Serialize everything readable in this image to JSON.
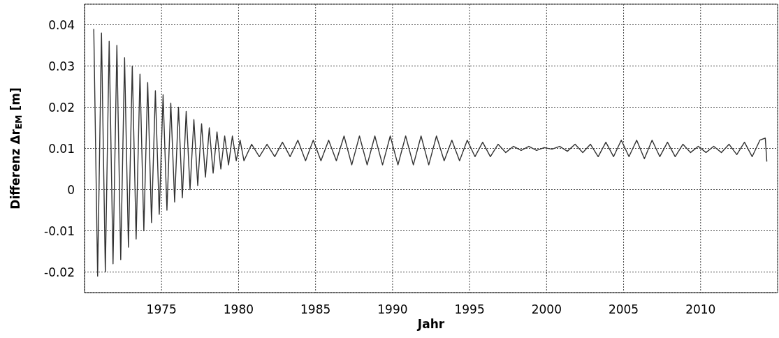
{
  "chart_data": {
    "type": "line",
    "xlabel": "Jahr",
    "ylabel": "Differenz Δr$_{EM}$ [m]",
    "xlim": [
      1970,
      2015
    ],
    "xticks": [
      1975,
      1980,
      1985,
      1990,
      1995,
      2000,
      2005,
      2010
    ],
    "ylim": [
      -0.025,
      0.045
    ],
    "yticks": [
      -0.02,
      -0.01,
      0,
      0.01,
      0.02,
      0.03,
      0.04
    ],
    "grid": true,
    "legend": false,
    "marker": "none",
    "line_style": "solid",
    "series": [
      {
        "color": "#333333",
        "x": [
          1970.6,
          1970.85,
          1971.1,
          1971.35,
          1971.6,
          1971.85,
          1972.1,
          1972.35,
          1972.6,
          1972.85,
          1973.1,
          1973.35,
          1973.6,
          1973.85,
          1974.1,
          1974.35,
          1974.6,
          1974.85,
          1975.1,
          1975.35,
          1975.6,
          1975.85,
          1976.1,
          1976.35,
          1976.6,
          1976.85,
          1977.1,
          1977.35,
          1977.6,
          1977.85,
          1978.1,
          1978.35,
          1978.6,
          1978.85,
          1979.1,
          1979.35,
          1979.6,
          1979.85,
          1980.1,
          1980.35,
          1980.85,
          1981.35,
          1981.85,
          1982.35,
          1982.85,
          1983.35,
          1983.85,
          1984.35,
          1984.85,
          1985.35,
          1985.85,
          1986.35,
          1986.85,
          1987.35,
          1987.85,
          1988.35,
          1988.85,
          1989.35,
          1989.85,
          1990.35,
          1990.85,
          1991.35,
          1991.85,
          1992.35,
          1992.85,
          1993.35,
          1993.85,
          1994.35,
          1994.85,
          1995.35,
          1995.85,
          1996.35,
          1996.85,
          1997.35,
          1997.85,
          1998.35,
          1998.85,
          1999.35,
          1999.85,
          2000.35,
          2000.85,
          2001.35,
          2001.85,
          2002.35,
          2002.85,
          2003.35,
          2003.85,
          2004.35,
          2004.85,
          2005.35,
          2005.85,
          2006.35,
          2006.85,
          2007.35,
          2007.85,
          2008.35,
          2008.85,
          2009.35,
          2009.85,
          2010.35,
          2010.85,
          2011.35,
          2011.85,
          2012.35,
          2012.85,
          2013.35,
          2013.85,
          2014.2,
          2014.3
        ],
        "values": [
          0.039,
          -0.021,
          0.038,
          -0.02,
          0.036,
          -0.018,
          0.035,
          -0.017,
          0.032,
          -0.014,
          0.03,
          -0.012,
          0.028,
          -0.01,
          0.026,
          -0.008,
          0.024,
          -0.006,
          0.023,
          -0.005,
          0.021,
          -0.003,
          0.02,
          -0.002,
          0.019,
          0,
          0.017,
          0.001,
          0.016,
          0.003,
          0.015,
          0.004,
          0.014,
          0.005,
          0.013,
          0.006,
          0.013,
          0.007,
          0.012,
          0.007,
          0.011,
          0.008,
          0.011,
          0.008,
          0.0115,
          0.008,
          0.012,
          0.007,
          0.012,
          0.007,
          0.012,
          0.007,
          0.013,
          0.006,
          0.013,
          0.006,
          0.013,
          0.006,
          0.013,
          0.006,
          0.013,
          0.006,
          0.013,
          0.006,
          0.013,
          0.007,
          0.012,
          0.007,
          0.012,
          0.008,
          0.0115,
          0.008,
          0.011,
          0.009,
          0.0105,
          0.0095,
          0.0105,
          0.0095,
          0.0102,
          0.0098,
          0.0105,
          0.0093,
          0.011,
          0.009,
          0.011,
          0.008,
          0.0115,
          0.008,
          0.012,
          0.008,
          0.012,
          0.0075,
          0.012,
          0.008,
          0.0115,
          0.008,
          0.011,
          0.009,
          0.0105,
          0.009,
          0.0105,
          0.009,
          0.011,
          0.0085,
          0.0115,
          0.008,
          0.012,
          0.0125,
          0.0068
        ]
      }
    ]
  }
}
